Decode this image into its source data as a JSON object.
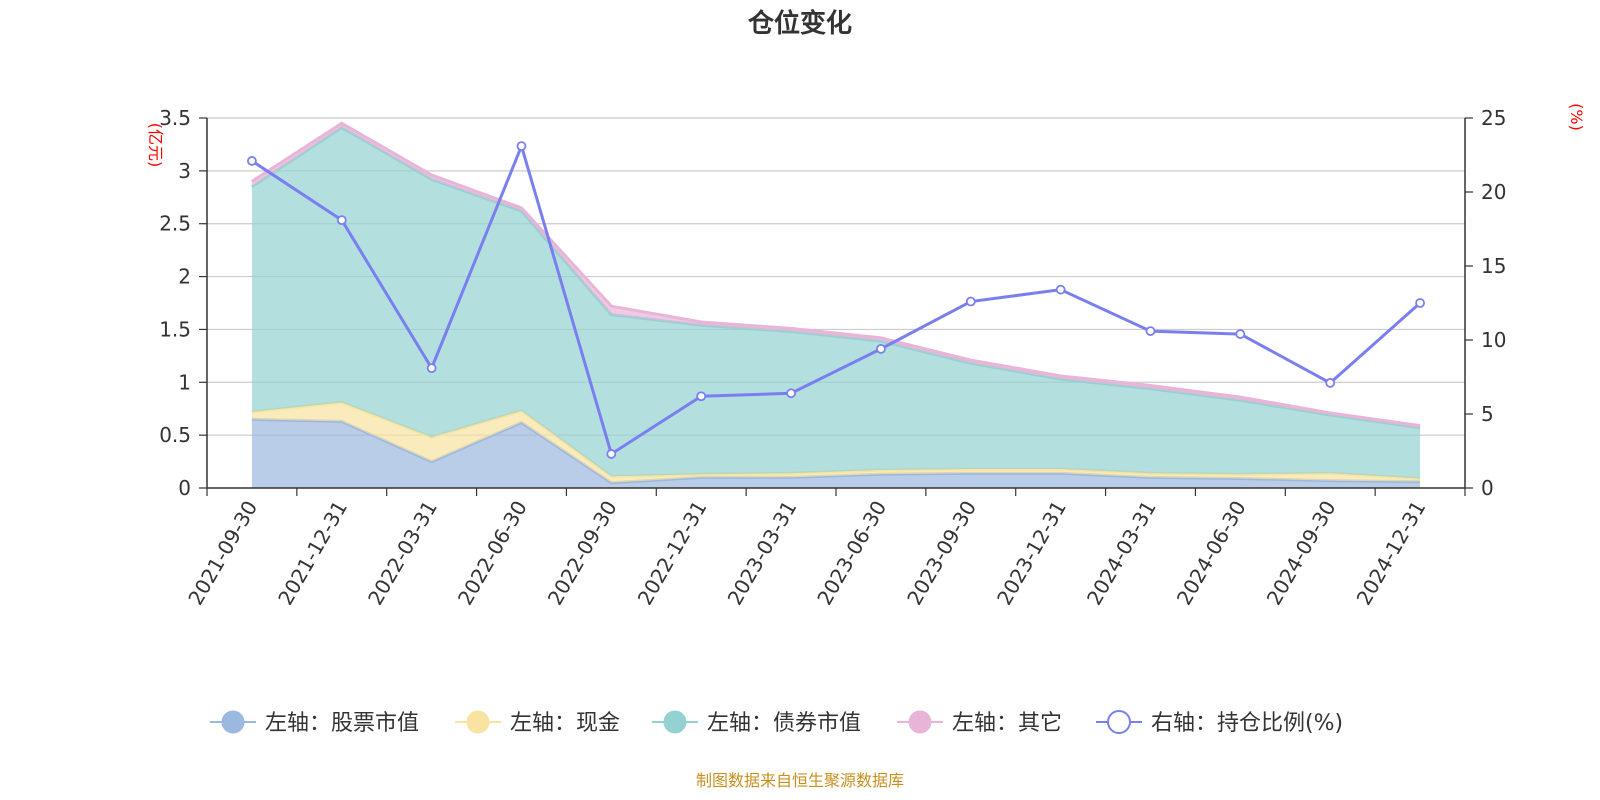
{
  "chart_data": {
    "type": "area",
    "title": "仓位变化",
    "left_axis_unit": "(亿元)",
    "right_axis_unit": "(%)",
    "categories": [
      "2021-09-30",
      "2021-12-31",
      "2022-03-31",
      "2022-06-30",
      "2022-09-30",
      "2022-12-31",
      "2023-03-31",
      "2023-06-30",
      "2023-09-30",
      "2023-12-31",
      "2024-03-31",
      "2024-06-30",
      "2024-09-30",
      "2024-12-31"
    ],
    "left_ylim": [
      0,
      3.5
    ],
    "left_ticks": [
      "0",
      "0.5",
      "1",
      "1.5",
      "2",
      "2.5",
      "3",
      "3.5"
    ],
    "right_ylim": [
      0,
      25
    ],
    "right_ticks": [
      "0",
      "5",
      "10",
      "15",
      "20",
      "25"
    ],
    "series": [
      {
        "name": "左轴：股票市值",
        "axis": "left",
        "stacked": true,
        "color": "#9bb8e0",
        "values": [
          0.65,
          0.63,
          0.25,
          0.62,
          0.05,
          0.1,
          0.1,
          0.13,
          0.14,
          0.14,
          0.1,
          0.09,
          0.07,
          0.06
        ]
      },
      {
        "name": "左轴：现金",
        "axis": "left",
        "stacked": true,
        "color": "#f8e3a0",
        "values": [
          0.07,
          0.18,
          0.23,
          0.11,
          0.06,
          0.03,
          0.04,
          0.04,
          0.04,
          0.04,
          0.04,
          0.04,
          0.07,
          0.03
        ]
      },
      {
        "name": "左轴：债券市值",
        "axis": "left",
        "stacked": true,
        "color": "#94d2d1",
        "values": [
          2.13,
          2.6,
          2.44,
          1.89,
          1.53,
          1.41,
          1.34,
          1.22,
          1.0,
          0.85,
          0.8,
          0.7,
          0.55,
          0.48
        ]
      },
      {
        "name": "左轴：其它",
        "axis": "left",
        "stacked": true,
        "color": "#e8b4d8",
        "values": [
          0.05,
          0.04,
          0.04,
          0.03,
          0.08,
          0.03,
          0.03,
          0.03,
          0.03,
          0.03,
          0.03,
          0.03,
          0.02,
          0.02
        ]
      },
      {
        "name": "右轴：持仓比例(%)",
        "axis": "right",
        "stacked": false,
        "color": "#7a7ff0",
        "values": [
          22.1,
          18.1,
          8.1,
          23.1,
          2.3,
          6.2,
          6.4,
          9.4,
          12.6,
          13.4,
          10.6,
          10.4,
          7.1,
          12.5
        ]
      }
    ]
  },
  "source_note": "制图数据来自恒生聚源数据库"
}
